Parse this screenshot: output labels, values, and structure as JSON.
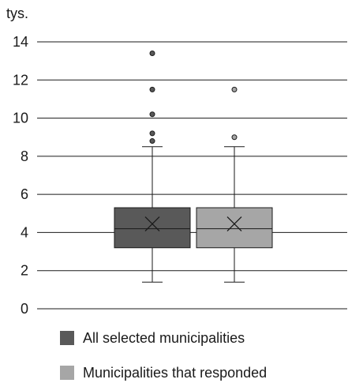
{
  "chart_data": {
    "type": "box",
    "unit_label": "tys.",
    "ylim": [
      0,
      14
    ],
    "yticks": [
      0,
      2,
      4,
      6,
      8,
      10,
      12,
      14
    ],
    "grid": true,
    "legend_position": "bottom",
    "series": [
      {
        "name": "All selected municipalities",
        "color": "#595959",
        "min": 1.4,
        "q1": 3.2,
        "median": 4.2,
        "mean": 4.45,
        "q3": 5.3,
        "max": 8.5,
        "outliers": [
          8.8,
          9.2,
          10.2,
          11.5,
          13.4
        ]
      },
      {
        "name": "Municipalities that responded",
        "color": "#a6a6a6",
        "min": 1.4,
        "q1": 3.2,
        "median": 4.2,
        "mean": 4.45,
        "q3": 5.3,
        "max": 8.5,
        "outliers": [
          9.0,
          11.5
        ]
      }
    ]
  }
}
